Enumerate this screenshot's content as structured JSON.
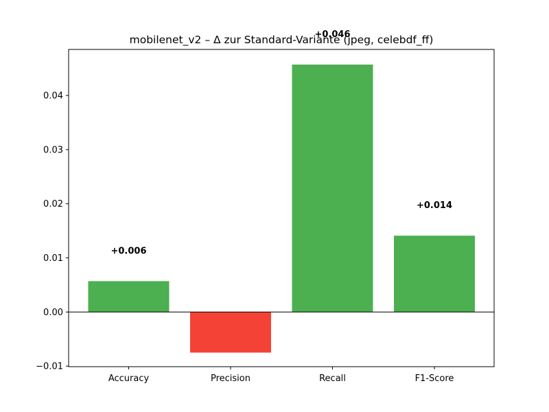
{
  "chart_data": {
    "type": "bar",
    "title": "mobilenet_v2 – Δ zur Standard-Variante (jpeg, celebdf_ff)",
    "xlabel": "",
    "ylabel": "",
    "categories": [
      "Accuracy",
      "Precision",
      "Recall",
      "F1-Score"
    ],
    "values": [
      0.0057,
      -0.0075,
      0.0457,
      0.0141
    ],
    "value_labels": [
      "+0.006",
      "",
      "+0.046",
      "+0.014"
    ],
    "bar_colors": [
      "#4caf50",
      "#f44336",
      "#4caf50",
      "#4caf50"
    ],
    "ylim": [
      -0.0101,
      0.0485
    ],
    "yticks": [
      -0.01,
      0.0,
      0.01,
      0.02,
      0.03,
      0.04
    ],
    "ytick_labels": [
      "−0.01",
      "0.00",
      "0.01",
      "0.02",
      "0.03",
      "0.04"
    ],
    "zero_line": true,
    "grid": false,
    "legend": "none"
  }
}
